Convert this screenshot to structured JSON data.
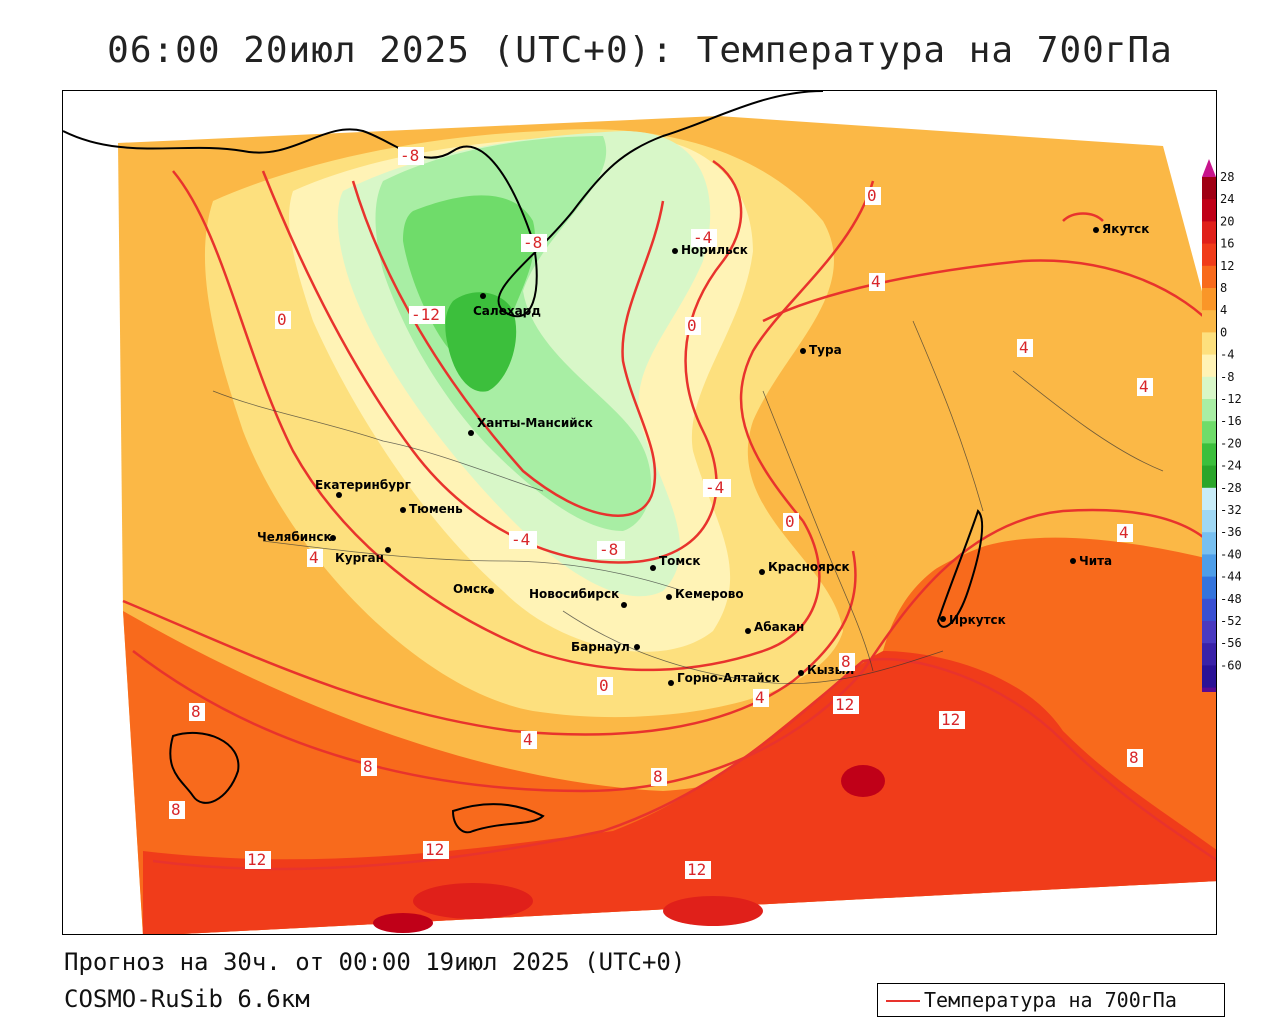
{
  "title": "06:00 20июл 2025 (UTC+0): Температура на 700гПа",
  "forecast_info": "Прогноз на 30ч. от 00:00 19июл 2025 (UTC+0)",
  "model_name": "COSMO-RuSib 6.6км",
  "legend": {
    "label": "Температура на 700гПа",
    "line_color": "#e8332d"
  },
  "colorbar": {
    "ticks": [
      "28",
      "24",
      "20",
      "16",
      "12",
      "8",
      "4",
      "0",
      "-4",
      "-8",
      "-12",
      "-16",
      "-20",
      "-24",
      "-28",
      "-32",
      "-36",
      "-40",
      "-44",
      "-48",
      "-52",
      "-56",
      "-60"
    ],
    "colors": [
      "#a00014",
      "#c00018",
      "#e0201a",
      "#f03c1a",
      "#f86a1c",
      "#fa9628",
      "#fbb846",
      "#fde07e",
      "#fff3b6",
      "#d8f7c8",
      "#a8eea4",
      "#6fdc6a",
      "#3cbf3c",
      "#2aa52a",
      "#c8ecf8",
      "#a0d8f4",
      "#78c0f0",
      "#4e9ee8",
      "#3474dc",
      "#3a50d2",
      "#4a3ac0",
      "#3a22a8",
      "#2a1296",
      "#5a0a90"
    ]
  },
  "cities": [
    {
      "name": "Якутск"
    },
    {
      "name": "Норильск"
    },
    {
      "name": "Салехард"
    },
    {
      "name": "Тура"
    },
    {
      "name": "Ханты-Мансийск"
    },
    {
      "name": "Екатеринбург"
    },
    {
      "name": "Тюмень"
    },
    {
      "name": "Челябинск"
    },
    {
      "name": "Курган"
    },
    {
      "name": "Омск"
    },
    {
      "name": "Новосибирск"
    },
    {
      "name": "Томск"
    },
    {
      "name": "Кемерово"
    },
    {
      "name": "Красноярск"
    },
    {
      "name": "Абакан"
    },
    {
      "name": "Барнаул"
    },
    {
      "name": "Горно-Алтайск"
    },
    {
      "name": "Кызыл"
    },
    {
      "name": "Иркутск"
    },
    {
      "name": "Чита"
    }
  ],
  "isotherm_labels": [
    "-8",
    "-8",
    "-4",
    "-12",
    "0",
    "0",
    "-4",
    "0",
    "-4",
    "-8",
    "4",
    "4",
    "0",
    "4",
    "8",
    "8",
    "8",
    "12",
    "12",
    "12",
    "12",
    "12",
    "8",
    "4",
    "4",
    "4",
    "8",
    "0",
    "8",
    "4"
  ]
}
